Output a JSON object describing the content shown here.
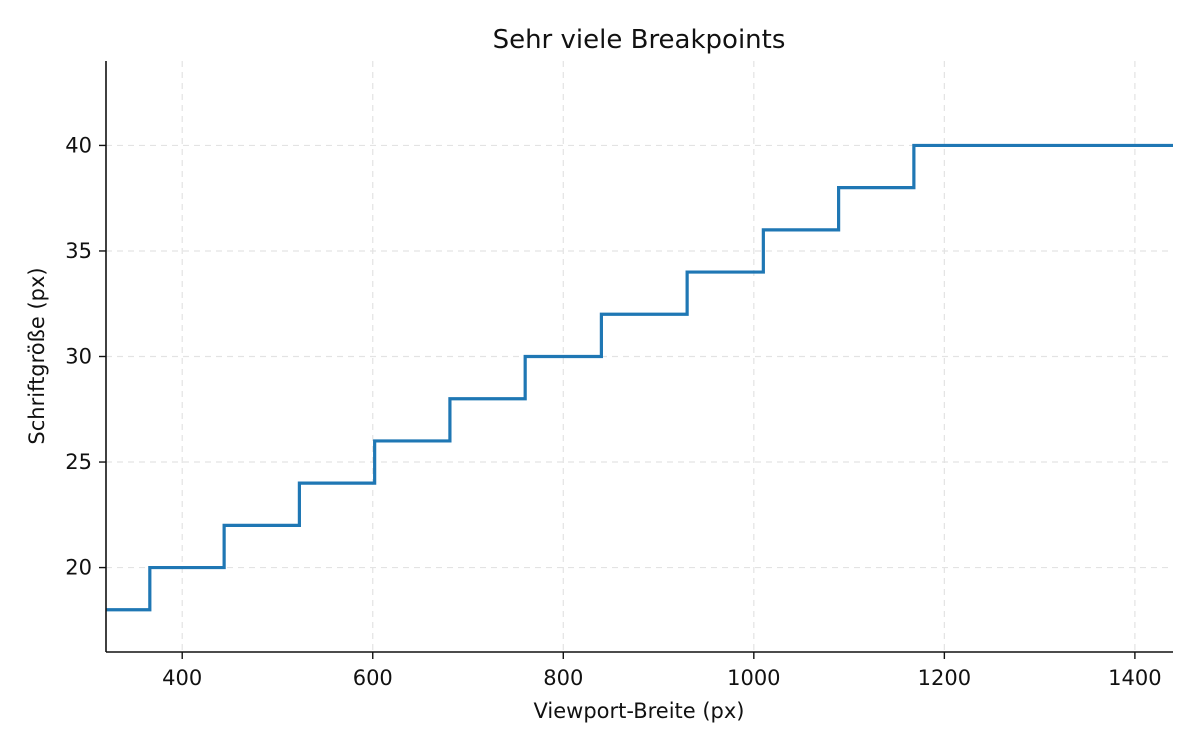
{
  "chart_data": {
    "type": "line",
    "drawstyle": "steps-post",
    "title": "Sehr viele Breakpoints",
    "xlabel": "Viewport-Breite (px)",
    "ylabel": "Schriftgröße (px)",
    "xlim": [
      320,
      1440
    ],
    "ylim": [
      16,
      44
    ],
    "xticks": [
      400,
      600,
      800,
      1000,
      1200,
      1400
    ],
    "yticks": [
      20,
      25,
      30,
      35,
      40
    ],
    "grid": true,
    "series": [
      {
        "color": "#1f77b4",
        "x": [
          320,
          366,
          444,
          523,
          602,
          681,
          760,
          840,
          930,
          1010,
          1089,
          1168,
          1440
        ],
        "y": [
          18,
          20,
          22,
          24,
          26,
          28,
          30,
          32,
          34,
          36,
          38,
          40,
          40
        ]
      }
    ]
  }
}
